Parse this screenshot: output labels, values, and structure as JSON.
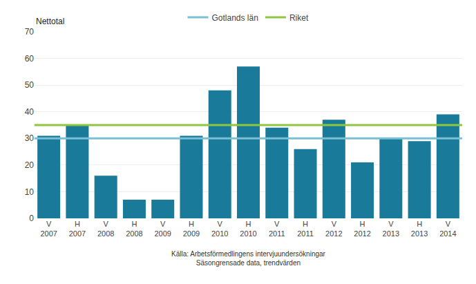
{
  "chart_data": {
    "type": "bar",
    "ylabel": "Nettotal",
    "categories": [
      "V\n2007",
      "H\n2007",
      "V\n2008",
      "H\n2008",
      "V\n2009",
      "H\n2009",
      "V\n2010",
      "H\n2010",
      "V\n2011",
      "H\n2011",
      "V\n2012",
      "H\n2012",
      "V\n2013",
      "H\n2013",
      "V\n2014"
    ],
    "values": [
      31,
      35,
      16,
      7,
      7,
      31,
      48,
      57,
      34,
      26,
      37,
      21,
      30,
      29,
      39
    ],
    "color": "#1a7a9a",
    "reference_lines": [
      {
        "name": "Gotlands län",
        "value": 30,
        "color": "#7bbfd4"
      },
      {
        "name": "Riket",
        "value": 35,
        "color": "#8dc63f"
      }
    ],
    "ylim": [
      0,
      70
    ],
    "yticks": [
      0,
      10,
      20,
      30,
      40,
      50,
      60,
      70
    ],
    "grid": true,
    "legend": "top",
    "source": "Källa: Arbetsförmedlingens intervjuundersökningar\nSäsongrensade data, trendvärden"
  }
}
